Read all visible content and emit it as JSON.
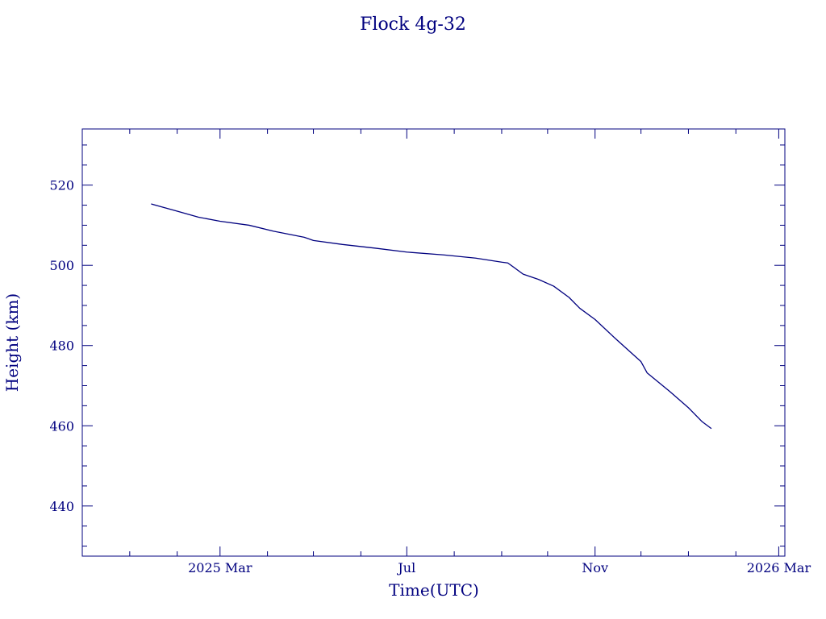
{
  "chart_data": {
    "type": "line",
    "title": "Flock 4g-32",
    "xlabel": "Time(UTC)",
    "ylabel": "Height (km)",
    "x_axis": {
      "kind": "date",
      "min": "2024-12-01",
      "max": "2026-03-05",
      "major_ticks": [
        {
          "date": "2025-03-01",
          "label": "2025 Mar"
        },
        {
          "date": "2025-07-01",
          "label": "Jul"
        },
        {
          "date": "2025-11-01",
          "label": "Nov"
        },
        {
          "date": "2026-03-01",
          "label": "2026 Mar"
        }
      ],
      "minor_ticks": [
        "2025-01-01",
        "2025-02-01",
        "2025-04-01",
        "2025-05-01",
        "2025-06-01",
        "2025-08-01",
        "2025-09-01",
        "2025-10-01",
        "2025-12-01",
        "2026-01-01",
        "2026-02-01"
      ]
    },
    "y_axis": {
      "min": 427.5,
      "max": 534,
      "major_ticks": [
        440,
        460,
        480,
        500,
        520
      ],
      "minor_step": 5
    },
    "grid": false,
    "color": "#00007f",
    "series": [
      {
        "points": [
          [
            "2025-01-15",
            515.3
          ],
          [
            "2025-02-01",
            513.5
          ],
          [
            "2025-02-15",
            512.0
          ],
          [
            "2025-03-01",
            511.0
          ],
          [
            "2025-03-20",
            510.0
          ],
          [
            "2025-04-05",
            508.5
          ],
          [
            "2025-04-25",
            507.0
          ],
          [
            "2025-05-01",
            506.2
          ],
          [
            "2025-05-20",
            505.2
          ],
          [
            "2025-06-10",
            504.3
          ],
          [
            "2025-07-01",
            503.3
          ],
          [
            "2025-07-25",
            502.6
          ],
          [
            "2025-08-15",
            501.8
          ],
          [
            "2025-09-01",
            500.8
          ],
          [
            "2025-09-05",
            500.6
          ],
          [
            "2025-09-15",
            497.8
          ],
          [
            "2025-09-25",
            496.5
          ],
          [
            "2025-10-05",
            494.8
          ],
          [
            "2025-10-15",
            492.0
          ],
          [
            "2025-10-22",
            489.3
          ],
          [
            "2025-11-01",
            486.5
          ],
          [
            "2025-11-15",
            481.5
          ],
          [
            "2025-12-01",
            476.0
          ],
          [
            "2025-12-05",
            473.2
          ],
          [
            "2025-12-20",
            468.5
          ],
          [
            "2026-01-01",
            464.5
          ],
          [
            "2026-01-10",
            461.0
          ],
          [
            "2026-01-16",
            459.3
          ]
        ]
      }
    ]
  }
}
